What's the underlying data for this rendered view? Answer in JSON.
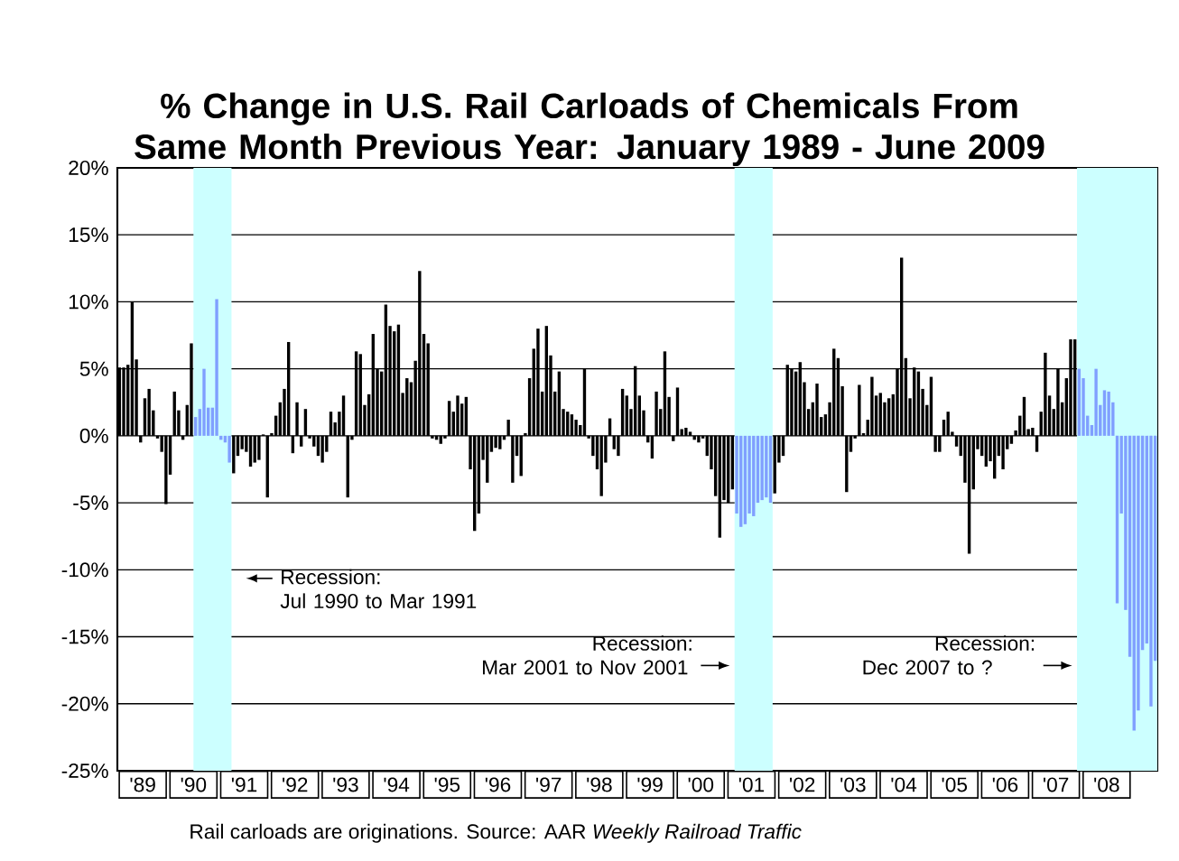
{
  "chart_data": {
    "type": "bar",
    "title": "% Change in U.S. Rail Carloads of Chemicals From Same Month Previous Year: January 1989 - June 2009",
    "x": [
      "1989-01",
      "1989-02",
      "1989-03",
      "1989-04",
      "1989-05",
      "1989-06",
      "1989-07",
      "1989-08",
      "1989-09",
      "1989-10",
      "1989-11",
      "1989-12",
      "1990-01",
      "1990-02",
      "1990-03",
      "1990-04",
      "1990-05",
      "1990-06",
      "1990-07",
      "1990-08",
      "1990-09",
      "1990-10",
      "1990-11",
      "1990-12",
      "1991-01",
      "1991-02",
      "1991-03",
      "1991-04",
      "1991-05",
      "1991-06",
      "1991-07",
      "1991-08",
      "1991-09",
      "1991-10",
      "1991-11",
      "1991-12",
      "1992-01",
      "1992-02",
      "1992-03",
      "1992-04",
      "1992-05",
      "1992-06",
      "1992-07",
      "1992-08",
      "1992-09",
      "1992-10",
      "1992-11",
      "1992-12",
      "1993-01",
      "1993-02",
      "1993-03",
      "1993-04",
      "1993-05",
      "1993-06",
      "1993-07",
      "1993-08",
      "1993-09",
      "1993-10",
      "1993-11",
      "1993-12",
      "1994-01",
      "1994-02",
      "1994-03",
      "1994-04",
      "1994-05",
      "1994-06",
      "1994-07",
      "1994-08",
      "1994-09",
      "1994-10",
      "1994-11",
      "1994-12",
      "1995-01",
      "1995-02",
      "1995-03",
      "1995-04",
      "1995-05",
      "1995-06",
      "1995-07",
      "1995-08",
      "1995-09",
      "1995-10",
      "1995-11",
      "1995-12",
      "1996-01",
      "1996-02",
      "1996-03",
      "1996-04",
      "1996-05",
      "1996-06",
      "1996-07",
      "1996-08",
      "1996-09",
      "1996-10",
      "1996-11",
      "1996-12",
      "1997-01",
      "1997-02",
      "1997-03",
      "1997-04",
      "1997-05",
      "1997-06",
      "1997-07",
      "1997-08",
      "1997-09",
      "1997-10",
      "1997-11",
      "1997-12",
      "1998-01",
      "1998-02",
      "1998-03",
      "1998-04",
      "1998-05",
      "1998-06",
      "1998-07",
      "1998-08",
      "1998-09",
      "1998-10",
      "1998-11",
      "1998-12",
      "1999-01",
      "1999-02",
      "1999-03",
      "1999-04",
      "1999-05",
      "1999-06",
      "1999-07",
      "1999-08",
      "1999-09",
      "1999-10",
      "1999-11",
      "1999-12",
      "2000-01",
      "2000-02",
      "2000-03",
      "2000-04",
      "2000-05",
      "2000-06",
      "2000-07",
      "2000-08",
      "2000-09",
      "2000-10",
      "2000-11",
      "2000-12",
      "2001-01",
      "2001-02",
      "2001-03",
      "2001-04",
      "2001-05",
      "2001-06",
      "2001-07",
      "2001-08",
      "2001-09",
      "2001-10",
      "2001-11",
      "2001-12",
      "2002-01",
      "2002-02",
      "2002-03",
      "2002-04",
      "2002-05",
      "2002-06",
      "2002-07",
      "2002-08",
      "2002-09",
      "2002-10",
      "2002-11",
      "2002-12",
      "2003-01",
      "2003-02",
      "2003-03",
      "2003-04",
      "2003-05",
      "2003-06",
      "2003-07",
      "2003-08",
      "2003-09",
      "2003-10",
      "2003-11",
      "2003-12",
      "2004-01",
      "2004-02",
      "2004-03",
      "2004-04",
      "2004-05",
      "2004-06",
      "2004-07",
      "2004-08",
      "2004-09",
      "2004-10",
      "2004-11",
      "2004-12",
      "2005-01",
      "2005-02",
      "2005-03",
      "2005-04",
      "2005-05",
      "2005-06",
      "2005-07",
      "2005-08",
      "2005-09",
      "2005-10",
      "2005-11",
      "2005-12",
      "2006-01",
      "2006-02",
      "2006-03",
      "2006-04",
      "2006-05",
      "2006-06",
      "2006-07",
      "2006-08",
      "2006-09",
      "2006-10",
      "2006-11",
      "2006-12",
      "2007-01",
      "2007-02",
      "2007-03",
      "2007-04",
      "2007-05",
      "2007-06",
      "2007-07",
      "2007-08",
      "2007-09",
      "2007-10",
      "2007-11",
      "2007-12",
      "2008-01",
      "2008-02",
      "2008-03",
      "2008-04",
      "2008-05",
      "2008-06",
      "2008-07",
      "2008-08",
      "2008-09",
      "2008-10",
      "2008-11",
      "2008-12",
      "2009-01",
      "2009-02",
      "2009-03",
      "2009-04",
      "2009-05",
      "2009-06"
    ],
    "values": [
      5.1,
      5.1,
      5.3,
      10.0,
      5.7,
      -0.5,
      2.8,
      3.5,
      1.9,
      -0.2,
      -1.2,
      -5.1,
      -2.9,
      3.3,
      1.9,
      -0.3,
      2.3,
      6.9,
      1.4,
      2.0,
      5.0,
      2.1,
      2.1,
      10.2,
      -0.3,
      -0.5,
      -2.0,
      -2.8,
      -1.5,
      -1.0,
      -1.2,
      -2.3,
      -2.0,
      -1.8,
      0.1,
      -4.6,
      0.2,
      1.5,
      2.5,
      3.5,
      7.0,
      -1.3,
      2.5,
      -0.8,
      2.0,
      -0.2,
      -0.8,
      -1.5,
      -2.0,
      -1.2,
      1.8,
      1.0,
      1.8,
      3.0,
      -4.6,
      -0.3,
      6.3,
      6.1,
      2.3,
      3.1,
      7.6,
      5.0,
      4.8,
      9.8,
      8.2,
      7.8,
      8.3,
      3.2,
      4.3,
      4.0,
      5.6,
      12.3,
      7.6,
      6.9,
      -0.2,
      -0.3,
      -0.6,
      -0.2,
      2.6,
      1.8,
      3.0,
      2.4,
      2.9,
      -2.5,
      -7.1,
      -5.8,
      -1.8,
      -3.5,
      -1.2,
      -0.9,
      -1.0,
      -0.3,
      1.2,
      -3.5,
      -1.5,
      -3.0,
      0.2,
      4.3,
      6.5,
      8.0,
      3.3,
      8.2,
      6.0,
      3.3,
      4.8,
      2.0,
      1.8,
      1.6,
      1.2,
      0.8,
      5.0,
      -0.2,
      -1.5,
      -2.5,
      -4.5,
      -2.0,
      1.3,
      -1.0,
      -1.5,
      3.5,
      3.0,
      2.0,
      5.2,
      3.0,
      1.9,
      -0.5,
      -1.7,
      3.3,
      2.0,
      6.3,
      2.9,
      -0.4,
      3.6,
      0.5,
      0.6,
      0.3,
      -0.3,
      -0.5,
      -0.2,
      -1.5,
      -2.5,
      -4.5,
      -7.6,
      -4.8,
      -5.0,
      -4.0,
      -5.8,
      -6.8,
      -6.6,
      -5.8,
      -6.0,
      -5.0,
      -4.8,
      -4.6,
      -5.0,
      -4.3,
      -2.0,
      -1.5,
      5.3,
      5.0,
      4.8,
      5.5,
      4.0,
      2.0,
      2.5,
      3.9,
      1.4,
      1.6,
      2.5,
      6.5,
      5.8,
      3.7,
      -4.2,
      -1.2,
      -0.2,
      3.8,
      0.2,
      1.2,
      4.4,
      3.0,
      3.2,
      2.5,
      2.8,
      3.1,
      5.0,
      13.3,
      5.8,
      2.8,
      5.1,
      4.8,
      3.5,
      2.3,
      4.4,
      -1.2,
      -1.2,
      1.2,
      1.8,
      0.3,
      -0.8,
      -1.5,
      -3.5,
      -8.8,
      -4.0,
      -1.0,
      -1.5,
      -2.3,
      -1.9,
      -3.2,
      -1.5,
      -2.5,
      -1.0,
      -0.6,
      0.4,
      1.5,
      2.9,
      0.5,
      0.6,
      -1.2,
      1.8,
      6.2,
      3.0,
      2.0,
      5.0,
      2.5,
      4.3,
      7.2,
      7.2,
      5.0,
      4.3,
      1.5,
      0.8,
      5.0,
      2.3,
      3.4,
      3.3,
      2.5,
      -12.5,
      -5.8,
      -13.0,
      -16.5,
      -22.0,
      -20.5,
      -16.0,
      -15.5,
      -20.2,
      -16.8
    ],
    "colors": [
      "#000000",
      "#000000",
      "#000000",
      "#000000",
      "#000000",
      "#000000",
      "#000000",
      "#000000",
      "#000000",
      "#000000",
      "#000000",
      "#000000",
      "#000000",
      "#000000",
      "#000000",
      "#000000",
      "#000000",
      "#000000",
      "#809fff",
      "#809fff",
      "#809fff",
      "#809fff",
      "#809fff",
      "#809fff",
      "#809fff",
      "#809fff",
      "#809fff",
      "#000000",
      "#000000",
      "#000000",
      "#000000",
      "#000000",
      "#000000",
      "#000000",
      "#000000",
      "#000000",
      "#000000",
      "#000000",
      "#000000",
      "#000000",
      "#000000",
      "#000000",
      "#000000",
      "#000000",
      "#000000",
      "#000000",
      "#000000",
      "#000000",
      "#000000",
      "#000000",
      "#000000",
      "#000000",
      "#000000",
      "#000000",
      "#000000",
      "#000000",
      "#000000",
      "#000000",
      "#000000",
      "#000000",
      "#000000",
      "#000000",
      "#000000",
      "#000000",
      "#000000",
      "#000000",
      "#000000",
      "#000000",
      "#000000",
      "#000000",
      "#000000",
      "#000000",
      "#000000",
      "#000000",
      "#000000",
      "#000000",
      "#000000",
      "#000000",
      "#000000",
      "#000000",
      "#000000",
      "#000000",
      "#000000",
      "#000000",
      "#000000",
      "#000000",
      "#000000",
      "#000000",
      "#000000",
      "#000000",
      "#000000",
      "#000000",
      "#000000",
      "#000000",
      "#000000",
      "#000000",
      "#000000",
      "#000000",
      "#000000",
      "#000000",
      "#000000",
      "#000000",
      "#000000",
      "#000000",
      "#000000",
      "#000000",
      "#000000",
      "#000000",
      "#000000",
      "#000000",
      "#000000",
      "#000000",
      "#000000",
      "#000000",
      "#000000",
      "#000000",
      "#000000",
      "#000000",
      "#000000",
      "#000000",
      "#000000",
      "#000000",
      "#000000",
      "#000000",
      "#000000",
      "#000000",
      "#000000",
      "#000000",
      "#000000",
      "#000000",
      "#000000",
      "#000000",
      "#000000",
      "#000000",
      "#000000",
      "#000000",
      "#000000",
      "#000000",
      "#000000",
      "#000000",
      "#000000",
      "#000000",
      "#000000",
      "#000000",
      "#000000",
      "#000000",
      "#809fff",
      "#809fff",
      "#809fff",
      "#809fff",
      "#809fff",
      "#809fff",
      "#809fff",
      "#809fff",
      "#809fff",
      "#000000",
      "#000000",
      "#000000",
      "#000000",
      "#000000",
      "#000000",
      "#000000",
      "#000000",
      "#000000",
      "#000000",
      "#000000",
      "#000000",
      "#000000",
      "#000000",
      "#000000",
      "#000000",
      "#000000",
      "#000000",
      "#000000",
      "#000000",
      "#000000",
      "#000000",
      "#000000",
      "#000000",
      "#000000",
      "#000000",
      "#000000",
      "#000000",
      "#000000",
      "#000000",
      "#000000",
      "#000000",
      "#000000",
      "#000000",
      "#000000",
      "#000000",
      "#000000",
      "#000000",
      "#000000",
      "#000000",
      "#000000",
      "#000000",
      "#000000",
      "#000000",
      "#000000",
      "#000000",
      "#000000",
      "#000000",
      "#000000",
      "#000000",
      "#000000",
      "#000000",
      "#000000",
      "#000000",
      "#000000",
      "#000000",
      "#000000",
      "#000000",
      "#000000",
      "#000000",
      "#000000",
      "#000000",
      "#000000",
      "#000000",
      "#000000",
      "#000000",
      "#000000",
      "#000000",
      "#000000",
      "#000000",
      "#000000",
      "#000000",
      "#809fff",
      "#809fff",
      "#809fff",
      "#809fff",
      "#809fff",
      "#809fff",
      "#809fff",
      "#809fff",
      "#809fff",
      "#809fff",
      "#809fff",
      "#809fff",
      "#809fff",
      "#809fff",
      "#809fff",
      "#809fff",
      "#809fff",
      "#809fff",
      "#809fff"
    ],
    "xlim": [
      "1989-01-01",
      "2009-07-01"
    ],
    "xticks": [
      {
        "value": "1989-07-01",
        "label": "'89"
      },
      {
        "value": "1990-07-01",
        "label": "'90"
      },
      {
        "value": "1991-07-01",
        "label": "'91"
      },
      {
        "value": "1992-07-01",
        "label": "'92"
      },
      {
        "value": "1993-07-01",
        "label": "'93"
      },
      {
        "value": "1994-07-01",
        "label": "'94"
      },
      {
        "value": "1995-07-01",
        "label": "'95"
      },
      {
        "value": "1996-07-01",
        "label": "'96"
      },
      {
        "value": "1997-07-01",
        "label": "'97"
      },
      {
        "value": "1998-07-01",
        "label": "'98"
      },
      {
        "value": "1999-07-01",
        "label": "'99"
      },
      {
        "value": "2000-07-01",
        "label": "'00"
      },
      {
        "value": "2001-07-01",
        "label": "'01"
      },
      {
        "value": "2002-07-01",
        "label": "'02"
      },
      {
        "value": "2003-07-01",
        "label": "'03"
      },
      {
        "value": "2004-07-01",
        "label": "'04"
      },
      {
        "value": "2005-07-01",
        "label": "'05"
      },
      {
        "value": "2006-07-01",
        "label": "'06"
      },
      {
        "value": "2007-07-01",
        "label": "'07"
      },
      {
        "value": "2008-07-01",
        "label": "'08"
      }
    ],
    "ylim": [
      -25,
      20
    ],
    "yticks": [
      {
        "value": -25,
        "label": "-25%"
      },
      {
        "value": -20,
        "label": "-20%"
      },
      {
        "value": -15,
        "label": "-15%"
      },
      {
        "value": -10,
        "label": "-10%"
      },
      {
        "value": -5,
        "label": "-5%"
      },
      {
        "value": 0,
        "label": "0%"
      },
      {
        "value": 5,
        "label": "5%"
      },
      {
        "value": 10,
        "label": "10%"
      },
      {
        "value": 15,
        "label": "15%"
      },
      {
        "value": 20,
        "label": "20%"
      }
    ],
    "grid": "y",
    "bands": [
      {
        "axis": "x",
        "from": "1990-07-01",
        "to": "1991-04-01",
        "color": "#ccffff",
        "label": "Recession: Jul 1990 to Mar 1991"
      },
      {
        "axis": "x",
        "from": "2001-03-01",
        "to": "2001-12-01",
        "color": "#ccffff",
        "label": "Recession: Mar 2001 to Nov 2001"
      },
      {
        "axis": "x",
        "from": "2007-12-01",
        "to": "2009-07-01",
        "color": "#ccffff",
        "label": "Recession: Dec 2007 to ?"
      }
    ],
    "annotations": [
      "Rail carloads are originations.   Source: AAR *Weekly Railroad Traffic*"
    ]
  }
}
